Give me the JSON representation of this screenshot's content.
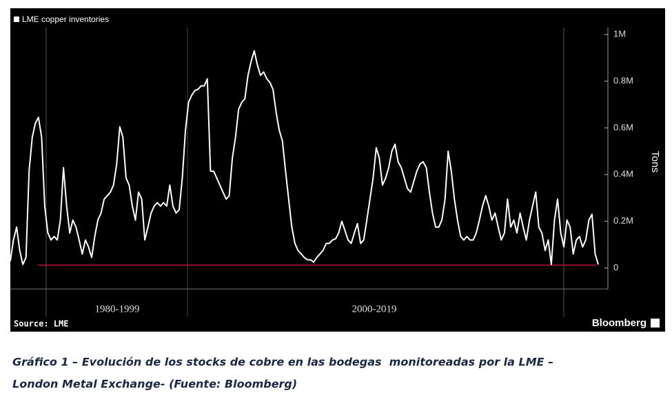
{
  "chart_data": {
    "type": "line",
    "series": [
      {
        "name": "LME copper inventories",
        "color": "#ffffff",
        "values": [
          30000,
          120000,
          175000,
          75000,
          15000,
          45000,
          415000,
          560000,
          620000,
          645000,
          560000,
          265000,
          150000,
          120000,
          135000,
          120000,
          205000,
          430000,
          265000,
          150000,
          205000,
          175000,
          120000,
          60000,
          120000,
          90000,
          45000,
          135000,
          205000,
          235000,
          295000,
          310000,
          325000,
          355000,
          445000,
          605000,
          560000,
          385000,
          355000,
          265000,
          205000,
          325000,
          295000,
          120000,
          175000,
          235000,
          265000,
          280000,
          265000,
          280000,
          265000,
          355000,
          265000,
          235000,
          250000,
          385000,
          590000,
          710000,
          740000,
          760000,
          765000,
          780000,
          780000,
          810000,
          415000,
          415000,
          385000,
          355000,
          325000,
          295000,
          310000,
          470000,
          560000,
          680000,
          710000,
          725000,
          825000,
          885000,
          930000,
          870000,
          825000,
          840000,
          810000,
          795000,
          765000,
          665000,
          590000,
          545000,
          415000,
          295000,
          175000,
          105000,
          75000,
          60000,
          45000,
          35000,
          35000,
          25000,
          45000,
          60000,
          75000,
          105000,
          105000,
          120000,
          125000,
          150000,
          200000,
          160000,
          120000,
          105000,
          150000,
          190000,
          105000,
          120000,
          205000,
          295000,
          385000,
          515000,
          470000,
          355000,
          385000,
          430000,
          500000,
          530000,
          455000,
          430000,
          385000,
          340000,
          325000,
          370000,
          415000,
          445000,
          455000,
          430000,
          325000,
          235000,
          175000,
          175000,
          205000,
          295000,
          500000,
          415000,
          295000,
          205000,
          135000,
          120000,
          135000,
          120000,
          120000,
          150000,
          205000,
          265000,
          310000,
          265000,
          205000,
          235000,
          175000,
          120000,
          150000,
          295000,
          175000,
          205000,
          150000,
          235000,
          175000,
          120000,
          205000,
          265000,
          325000,
          175000,
          150000,
          75000,
          120000,
          15000,
          205000,
          295000,
          150000,
          90000,
          205000,
          175000,
          60000,
          120000,
          135000,
          90000,
          120000,
          205000,
          230000,
          60000,
          15000
        ]
      }
    ],
    "ylim": [
      -90000,
      1030000
    ],
    "yticks": [
      0,
      {
        "value": 200000,
        "label": "0.2M"
      },
      {
        "value": 400000,
        "label": "0.4M"
      },
      {
        "value": 600000,
        "label": "0.6M"
      },
      {
        "value": 800000,
        "label": "0.8M"
      },
      {
        "value": 1000000,
        "label": "1M"
      }
    ],
    "y_label": "Tons",
    "periods": [
      "1980-1999",
      "2000-2019"
    ],
    "reference_line": {
      "value": 12000,
      "color": "#c0143c"
    },
    "source": "Source: LME",
    "brand": "Bloomberg"
  },
  "caption": {
    "lines": [
      "Gráfico 1 – Evolución de los stocks de cobre en las bodegas  monitoreadas por la LME –",
      "London Metal Exchange- (Fuente: Bloomberg)"
    ]
  }
}
